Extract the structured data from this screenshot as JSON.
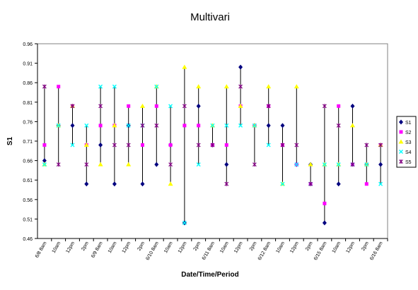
{
  "chart_data": {
    "type": "scatter",
    "subtype": "multivari high-low chart",
    "title": "Multivari",
    "xlabel": "Date/Time/Period",
    "ylabel": "S1",
    "ylim": [
      0.46,
      0.96
    ],
    "yticks": [
      "0.46",
      "0.51",
      "0.56",
      "0.61",
      "0.66",
      "0.71",
      "0.76",
      "0.81",
      "0.86",
      "0.91",
      "0.96"
    ],
    "grid": false,
    "legend_position": "right",
    "categories": [
      "6/8 8am",
      "10am",
      "12pm",
      "2pm",
      "6/9 8am",
      "10am",
      "12pm",
      "2pm",
      "6/10 8am",
      "10am",
      "12pm",
      "2pm",
      "6/11 8am",
      "10am",
      "12pm",
      "2pm",
      "6/12 8am",
      "10am",
      "12pm",
      "2pm",
      "6/15 8am",
      "10am",
      "12pm",
      "2pm",
      "6/16 8am"
    ],
    "series": [
      {
        "name": "S1",
        "color": "#00007f",
        "marker": "diamond",
        "values": [
          0.66,
          0.75,
          0.75,
          0.6,
          0.7,
          0.6,
          0.75,
          0.6,
          0.65,
          0.7,
          0.5,
          0.8,
          0.7,
          0.65,
          0.9,
          0.75,
          0.75,
          0.75,
          0.65,
          0.65,
          0.5,
          0.6,
          0.8,
          0.65,
          0.65
        ]
      },
      {
        "name": "S2",
        "color": "#ff00ff",
        "marker": "square",
        "values": [
          0.7,
          0.85,
          0.8,
          0.7,
          0.75,
          0.75,
          0.8,
          0.7,
          0.8,
          0.7,
          0.75,
          0.75,
          0.7,
          0.7,
          0.8,
          0.75,
          0.8,
          0.7,
          0.65,
          0.6,
          0.55,
          0.8,
          0.65,
          0.6,
          0.7
        ]
      },
      {
        "name": "S3",
        "color": "#ffff00",
        "marker": "triangle",
        "values": [
          0.65,
          0.75,
          0.8,
          0.7,
          0.65,
          0.75,
          0.65,
          0.8,
          0.85,
          0.6,
          0.9,
          0.85,
          0.75,
          0.85,
          0.8,
          0.75,
          0.85,
          0.6,
          0.85,
          0.65,
          0.65,
          0.65,
          0.75,
          0.65,
          0.7
        ]
      },
      {
        "name": "S4",
        "color": "#00ffff",
        "marker": "x",
        "values": [
          0.65,
          0.75,
          0.7,
          0.75,
          0.85,
          0.85,
          0.75,
          0.75,
          0.85,
          0.8,
          0.5,
          0.65,
          0.75,
          0.75,
          0.75,
          0.75,
          0.7,
          0.6,
          0.65,
          0.6,
          0.65,
          0.65,
          0.65,
          0.65,
          0.6
        ]
      },
      {
        "name": "S5",
        "color": "#7f007f",
        "marker": "star",
        "values": [
          0.85,
          0.65,
          0.8,
          0.65,
          0.8,
          0.7,
          0.7,
          0.75,
          0.75,
          0.65,
          0.8,
          0.7,
          0.7,
          0.6,
          0.85,
          0.65,
          0.8,
          0.7,
          0.7,
          0.6,
          0.8,
          0.75,
          0.65,
          0.7,
          0.7
        ]
      }
    ]
  }
}
